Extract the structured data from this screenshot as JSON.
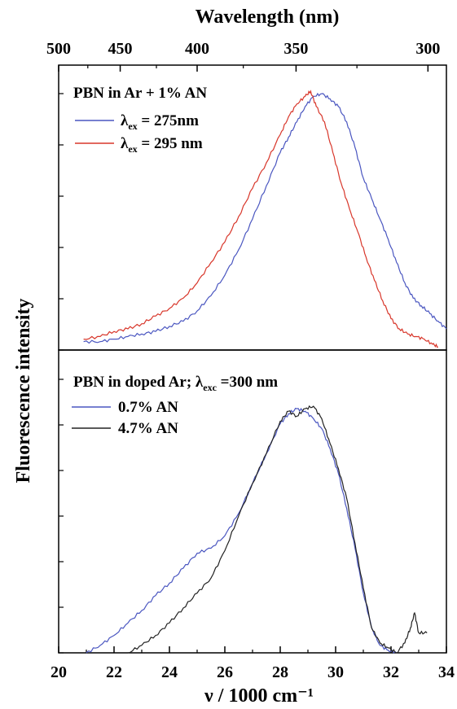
{
  "chart_data": [
    {
      "type": "line",
      "panel": "top",
      "title": "PBN in Ar + 1% AN",
      "xlabel": "ν / 1000 cm⁻¹",
      "xlim": [
        20,
        34
      ],
      "secondary_xlabel": "Wavelength (nm)",
      "secondary_ticks": [
        "500",
        "450",
        "400",
        "350",
        "300"
      ],
      "ylabel": "Fluorescence intensity",
      "series": [
        {
          "name": "λex = 275nm",
          "color": "#4a56c0",
          "x": [
            20.9,
            21.5,
            22,
            22.5,
            23,
            23.5,
            24,
            24.5,
            25,
            25.5,
            26,
            26.5,
            27,
            27.5,
            28,
            28.3,
            28.6,
            28.9,
            29.2,
            29.5,
            29.8,
            30.1,
            30.4,
            30.7,
            31,
            31.3,
            31.6,
            31.9,
            32.2,
            32.5,
            32.8,
            33.1,
            33.4,
            33.7,
            34
          ],
          "y": [
            0.02,
            0.02,
            0.03,
            0.04,
            0.05,
            0.06,
            0.08,
            0.1,
            0.14,
            0.2,
            0.28,
            0.38,
            0.5,
            0.63,
            0.76,
            0.82,
            0.88,
            0.94,
            0.98,
            0.99,
            0.97,
            0.94,
            0.88,
            0.78,
            0.66,
            0.58,
            0.5,
            0.42,
            0.33,
            0.25,
            0.19,
            0.16,
            0.13,
            0.1,
            0.07
          ]
        },
        {
          "name": "λex = 295 nm",
          "color": "#d8362a",
          "x": [
            20.9,
            21.5,
            22,
            22.5,
            23,
            23.5,
            24,
            24.5,
            25,
            25.5,
            26,
            26.5,
            27,
            27.5,
            28,
            28.3,
            28.6,
            28.9,
            29.1,
            29.3,
            29.6,
            29.9,
            30.2,
            30.5,
            30.8,
            31.1,
            31.4,
            31.7,
            32,
            32.3,
            32.6,
            32.9,
            33.2,
            33.5,
            33.7
          ],
          "y": [
            0.03,
            0.04,
            0.06,
            0.07,
            0.09,
            0.12,
            0.15,
            0.19,
            0.25,
            0.33,
            0.41,
            0.51,
            0.62,
            0.72,
            0.83,
            0.9,
            0.95,
            0.98,
            1.0,
            0.94,
            0.88,
            0.76,
            0.64,
            0.54,
            0.45,
            0.35,
            0.26,
            0.18,
            0.11,
            0.07,
            0.05,
            0.04,
            0.03,
            0.01,
            0.0
          ]
        }
      ]
    },
    {
      "type": "line",
      "panel": "bottom",
      "title": "PBN in doped Ar; λexc =300 nm",
      "xlabel": "ν / 1000 cm⁻¹",
      "xlim": [
        20,
        34
      ],
      "xticks": [
        "20",
        "22",
        "24",
        "26",
        "28",
        "30",
        "32",
        "34"
      ],
      "ylabel": "Fluorescence intensity",
      "series": [
        {
          "name": "0.7% AN",
          "color": "#4a56c0",
          "x": [
            21,
            21.5,
            22,
            22.5,
            23,
            23.5,
            24,
            24.5,
            25,
            25.5,
            26,
            26.5,
            27,
            27.5,
            28,
            28.3,
            28.6,
            28.9,
            29.2,
            29.5,
            29.8,
            30.1,
            30.4,
            30.7,
            31,
            31.3,
            31.6,
            31.9,
            32.2
          ],
          "y": [
            0.0,
            0.03,
            0.07,
            0.12,
            0.17,
            0.23,
            0.28,
            0.34,
            0.4,
            0.42,
            0.47,
            0.56,
            0.68,
            0.8,
            0.92,
            0.96,
            0.98,
            0.97,
            0.94,
            0.9,
            0.82,
            0.72,
            0.58,
            0.42,
            0.24,
            0.1,
            0.03,
            0.01,
            0.0
          ]
        },
        {
          "name": "4.7% AN",
          "color": "#222222",
          "x": [
            22.5,
            23,
            23.5,
            24,
            24.5,
            25,
            25.5,
            26,
            26.5,
            27,
            27.5,
            28,
            28.3,
            28.6,
            28.9,
            29.2,
            29.5,
            29.8,
            30.1,
            30.4,
            30.7,
            31,
            31.3,
            31.6,
            31.9,
            32.2,
            32.5,
            32.7,
            32.85,
            33,
            33.3
          ],
          "y": [
            0.0,
            0.03,
            0.07,
            0.12,
            0.18,
            0.24,
            0.3,
            0.41,
            0.55,
            0.68,
            0.8,
            0.93,
            0.97,
            0.95,
            0.98,
            0.99,
            0.94,
            0.84,
            0.74,
            0.62,
            0.44,
            0.26,
            0.1,
            0.04,
            0.02,
            0.0,
            0.04,
            0.1,
            0.16,
            0.08,
            0.08
          ]
        }
      ]
    }
  ]
}
